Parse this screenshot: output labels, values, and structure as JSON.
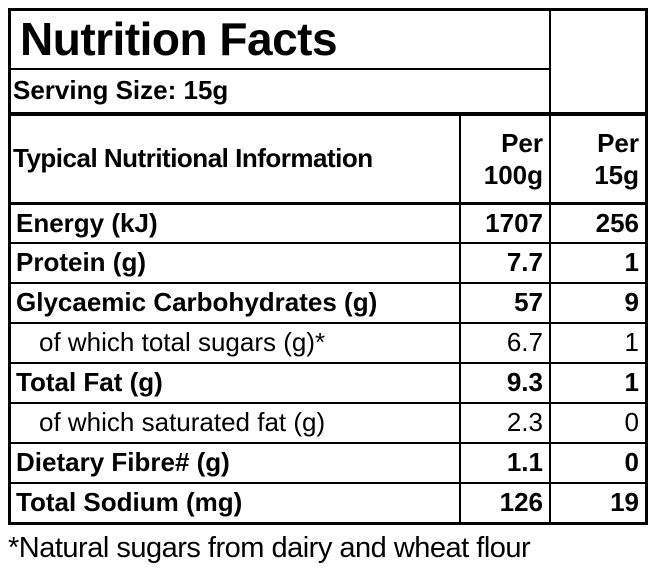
{
  "title": "Nutrition Facts",
  "serving_size": "Serving Size: 15g",
  "table": {
    "header": {
      "label": "Typical Nutritional Information",
      "per100": {
        "line1": "Per",
        "line2": "100g"
      },
      "per15": {
        "line1": "Per",
        "line2": "15g"
      }
    },
    "rows": [
      {
        "label": "Energy (kJ)",
        "per100": "1707",
        "per15": "256"
      },
      {
        "label": "Protein (g)",
        "per100": "7.7",
        "per15": "1"
      },
      {
        "label": "Glycaemic Carbohydrates (g)",
        "per100": "57",
        "per15": "9"
      },
      {
        "label": "of which total sugars (g)*",
        "per100": "6.7",
        "per15": "1"
      },
      {
        "label": "Total Fat (g)",
        "per100": "9.3",
        "per15": "1"
      },
      {
        "label": "of which saturated fat (g)",
        "per100": "2.3",
        "per15": "0"
      },
      {
        "label": "Dietary Fibre# (g)",
        "per100": "1.1",
        "per15": "0"
      },
      {
        "label": "Total Sodium (mg)",
        "per100": "126",
        "per15": "19"
      }
    ]
  },
  "footnote": "*Natural sugars from dairy and wheat flour",
  "colors": {
    "text": "#000000",
    "border": "#000000",
    "background": "#ffffff"
  }
}
